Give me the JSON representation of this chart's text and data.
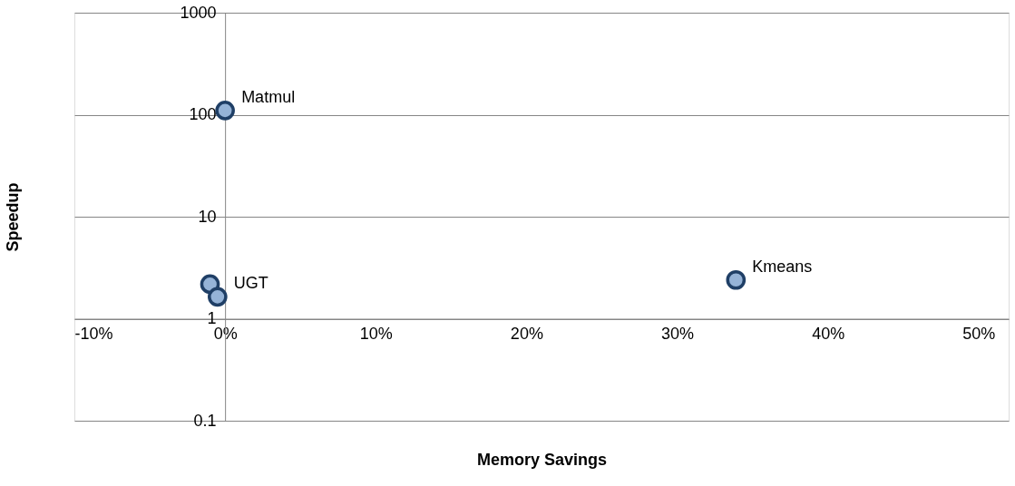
{
  "chart_data": {
    "type": "scatter",
    "xlabel": "Memory Savings",
    "ylabel": "Speedup",
    "x": [
      0,
      -1.0,
      -0.5,
      33.9
    ],
    "series": [
      {
        "color": "#95b3d7",
        "values": [
          110,
          2.18,
          1.64,
          2.4
        ]
      }
    ],
    "annotations": [
      {
        "text": "Matmul",
        "x": 0,
        "y": 110
      },
      {
        "text": "UGT",
        "x": -0.5,
        "y": 1.64
      },
      {
        "text": "Kmeans",
        "x": 33.9,
        "y": 2.4
      }
    ],
    "xlim": [
      -10,
      52
    ],
    "ylim": [
      0.1,
      1000
    ],
    "log": "y",
    "xticks": [
      {
        "value": -10,
        "label": "-10%"
      },
      {
        "value": 0,
        "label": "0%"
      },
      {
        "value": 10,
        "label": "10%"
      },
      {
        "value": 20,
        "label": "20%"
      },
      {
        "value": 30,
        "label": "30%"
      },
      {
        "value": 40,
        "label": "40%"
      },
      {
        "value": 50,
        "label": "50%"
      }
    ],
    "yticks": [
      0.1,
      1,
      10,
      100,
      1000
    ],
    "grid": "y",
    "marker": "circle"
  }
}
